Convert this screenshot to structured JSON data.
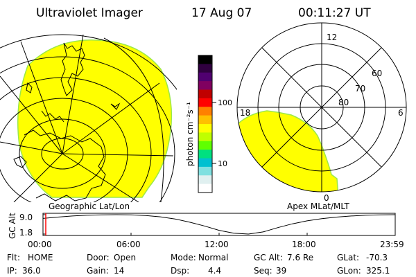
{
  "header": {
    "instrument": "Ultraviolet Imager",
    "date": "17 Aug 07",
    "time": "00:11:27 UT"
  },
  "colors": {
    "aurora_fill": "#ffff00",
    "aurora_edge": "#9be84a",
    "alt_marker": "#ff0000"
  },
  "left_panel": {
    "label": "Geographic Lat/Lon"
  },
  "right_panel": {
    "label": "Apex MLat/MLT",
    "mlt_labels": [
      "12",
      "18",
      "6",
      "0"
    ],
    "lat_labels": [
      "60",
      "70",
      "80"
    ]
  },
  "colorbar": {
    "unit_label": "photon cm⁻²s⁻¹",
    "ticks": [
      "100",
      "10"
    ],
    "scale": "log",
    "colors": [
      "#000000",
      "#300040",
      "#500070",
      "#800060",
      "#c00000",
      "#ff0000",
      "#ff8000",
      "#ffc000",
      "#ffff00",
      "#c0ff00",
      "#60ff00",
      "#00e080",
      "#00c0d0",
      "#80e0e0",
      "#e0f0f0",
      "#ffffff"
    ]
  },
  "altitude": {
    "axis_label": "GC Alt",
    "y_ticks": [
      "9.0",
      "1.8"
    ],
    "x_ticks": [
      "00:00",
      "06:00",
      "12:00",
      "18:00",
      "23:59"
    ],
    "series": {
      "hours": [
        0,
        1,
        2,
        3,
        4,
        5,
        6,
        7,
        8,
        9,
        10,
        11,
        12,
        13,
        14,
        15,
        16,
        17,
        18,
        19,
        20,
        21,
        22,
        23,
        23.98
      ],
      "alt_re": [
        7.6,
        8.1,
        8.5,
        8.8,
        8.95,
        9.0,
        8.95,
        8.7,
        8.2,
        7.4,
        6.2,
        4.8,
        3.2,
        2.1,
        1.8,
        2.6,
        4.2,
        5.6,
        6.7,
        7.5,
        8.1,
        8.5,
        8.8,
        8.95,
        9.0
      ]
    },
    "current_hour": 0.19
  },
  "info": {
    "row1": [
      {
        "key": "Flt:",
        "value": "HOME"
      },
      {
        "key": "Door:",
        "value": "Open"
      },
      {
        "key": "Mode:",
        "value": "Normal"
      },
      {
        "key": "GC Alt:",
        "value": "7.6 Re"
      },
      {
        "key": "GLat:",
        "value": "-70.3"
      }
    ],
    "row2": [
      {
        "key": "IP:",
        "value": "36.0"
      },
      {
        "key": "Gain:",
        "value": "14"
      },
      {
        "key": "Dsp:",
        "value": "4.4"
      },
      {
        "key": "Seq:",
        "value": "39"
      },
      {
        "key": "GLon:",
        "value": "325.1"
      }
    ]
  }
}
